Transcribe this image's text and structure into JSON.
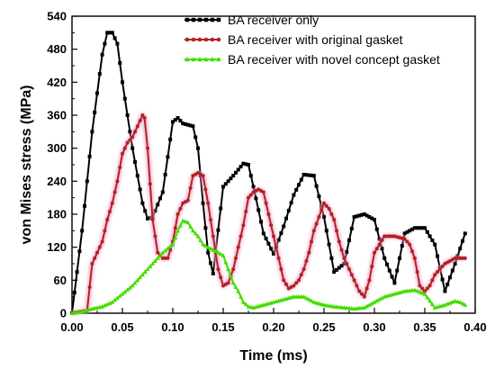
{
  "chart_data": {
    "type": "line",
    "xlabel": "Time (ms)",
    "ylabel": "von Mises stress (MPa)",
    "xlim": [
      0,
      0.4
    ],
    "ylim": [
      0,
      540
    ],
    "xticks": [
      0.0,
      0.05,
      0.1,
      0.15,
      0.2,
      0.25,
      0.3,
      0.35,
      0.4
    ],
    "xtick_labels": [
      "0.00",
      "0.05",
      "0.10",
      "0.15",
      "0.20",
      "0.25",
      "0.30",
      "0.35",
      "0.40"
    ],
    "yticks": [
      0,
      60,
      120,
      180,
      240,
      300,
      360,
      420,
      480,
      540
    ],
    "ytick_labels": [
      "0",
      "60",
      "120",
      "180",
      "240",
      "300",
      "360",
      "420",
      "480",
      "540"
    ],
    "grid": false,
    "legend_position": "top-right",
    "series": [
      {
        "name": "BA receiver only",
        "color": "#000000",
        "marker": "square",
        "x": [
          0,
          0.01,
          0.02,
          0.03,
          0.035,
          0.04,
          0.045,
          0.05,
          0.06,
          0.07,
          0.075,
          0.08,
          0.09,
          0.1,
          0.105,
          0.11,
          0.12,
          0.125,
          0.13,
          0.135,
          0.14,
          0.15,
          0.16,
          0.17,
          0.175,
          0.18,
          0.19,
          0.2,
          0.21,
          0.22,
          0.23,
          0.24,
          0.25,
          0.26,
          0.27,
          0.28,
          0.29,
          0.3,
          0.31,
          0.32,
          0.33,
          0.34,
          0.35,
          0.36,
          0.37,
          0.38,
          0.39
        ],
        "y": [
          0,
          150,
          330,
          470,
          510,
          510,
          490,
          420,
          300,
          200,
          172,
          175,
          220,
          348,
          355,
          345,
          340,
          300,
          200,
          110,
          72,
          230,
          250,
          272,
          270,
          230,
          145,
          108,
          158,
          215,
          252,
          250,
          175,
          75,
          90,
          175,
          180,
          170,
          100,
          55,
          145,
          155,
          155,
          125,
          40,
          90,
          145
        ]
      },
      {
        "name": "BA receiver with original gasket",
        "color": "#b22222",
        "marker": "circle",
        "x": [
          0,
          0.015,
          0.02,
          0.025,
          0.03,
          0.035,
          0.04,
          0.045,
          0.05,
          0.055,
          0.06,
          0.065,
          0.07,
          0.072,
          0.075,
          0.08,
          0.085,
          0.09,
          0.095,
          0.1,
          0.105,
          0.11,
          0.115,
          0.12,
          0.125,
          0.13,
          0.135,
          0.14,
          0.145,
          0.15,
          0.155,
          0.16,
          0.165,
          0.17,
          0.175,
          0.18,
          0.185,
          0.19,
          0.195,
          0.2,
          0.205,
          0.21,
          0.215,
          0.22,
          0.225,
          0.23,
          0.235,
          0.24,
          0.245,
          0.25,
          0.255,
          0.26,
          0.265,
          0.27,
          0.275,
          0.28,
          0.285,
          0.29,
          0.295,
          0.3,
          0.31,
          0.32,
          0.33,
          0.335,
          0.34,
          0.345,
          0.35,
          0.355,
          0.36,
          0.37,
          0.38,
          0.39
        ],
        "y": [
          0,
          5,
          90,
          110,
          130,
          170,
          200,
          240,
          290,
          310,
          320,
          340,
          360,
          355,
          300,
          170,
          110,
          100,
          100,
          130,
          180,
          200,
          205,
          250,
          255,
          250,
          200,
          140,
          80,
          50,
          55,
          80,
          120,
          160,
          210,
          220,
          225,
          220,
          180,
          140,
          100,
          60,
          45,
          50,
          60,
          80,
          110,
          150,
          175,
          200,
          190,
          170,
          130,
          100,
          80,
          60,
          40,
          30,
          60,
          110,
          140,
          140,
          135,
          125,
          100,
          50,
          40,
          50,
          70,
          90,
          100,
          100
        ]
      },
      {
        "name": "BA receiver with novel concept gasket",
        "color": "#44dd00",
        "marker": "triangle",
        "x": [
          0,
          0.01,
          0.02,
          0.03,
          0.04,
          0.05,
          0.06,
          0.07,
          0.08,
          0.09,
          0.1,
          0.105,
          0.11,
          0.115,
          0.12,
          0.125,
          0.13,
          0.14,
          0.15,
          0.155,
          0.16,
          0.165,
          0.17,
          0.175,
          0.18,
          0.19,
          0.2,
          0.21,
          0.22,
          0.23,
          0.24,
          0.25,
          0.26,
          0.27,
          0.28,
          0.29,
          0.3,
          0.31,
          0.32,
          0.33,
          0.34,
          0.35,
          0.36,
          0.37,
          0.38,
          0.385,
          0.39
        ],
        "y": [
          0,
          3,
          8,
          12,
          20,
          35,
          50,
          70,
          90,
          110,
          125,
          150,
          168,
          165,
          150,
          140,
          125,
          115,
          105,
          80,
          55,
          40,
          20,
          12,
          10,
          15,
          20,
          25,
          30,
          30,
          20,
          15,
          12,
          10,
          8,
          10,
          20,
          30,
          35,
          40,
          42,
          35,
          10,
          15,
          22,
          20,
          15
        ]
      }
    ]
  }
}
